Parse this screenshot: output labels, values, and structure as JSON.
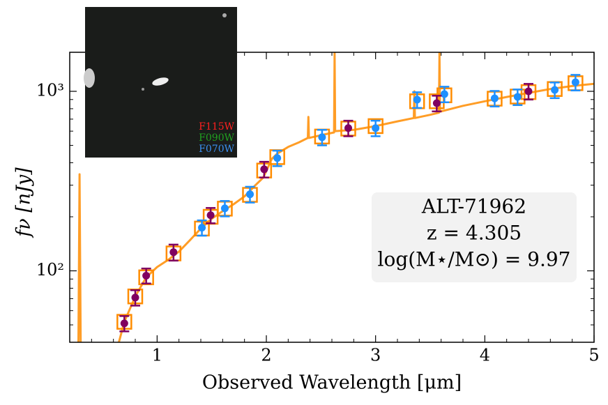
{
  "chart_data": {
    "type": "sed",
    "xlabel": "Observed Wavelength [μm]",
    "ylabel": "fν [nJy]",
    "xlim": [
      0.2,
      5
    ],
    "xticks": [
      1,
      2,
      3,
      4,
      5
    ],
    "xminorticks": [
      0.2,
      0.4,
      0.6,
      0.8,
      1.2,
      1.4,
      1.6,
      1.8,
      2.2,
      2.4,
      2.6,
      2.8,
      3.2,
      3.4,
      3.6,
      3.8,
      4.2,
      4.4,
      4.6,
      4.8
    ],
    "ylim": [
      40,
      1650
    ],
    "log_y": true,
    "yticks": [
      {
        "value": 100,
        "label": "10²"
      },
      {
        "value": 1000,
        "label": "10³"
      }
    ],
    "yminorticks": [
      40,
      50,
      60,
      70,
      80,
      90,
      200,
      300,
      400,
      500,
      600,
      700,
      800,
      900
    ],
    "annotation": [
      "ALT-71962",
      "z = 4.305",
      "log(M⋆/M⊙) = 9.97"
    ],
    "inset_labels": [
      {
        "text": "F115W",
        "color": "#ff2020"
      },
      {
        "text": "F090W",
        "color": "#20a020"
      },
      {
        "text": "F070W",
        "color": "#3a8ff0"
      }
    ],
    "spectrum": {
      "color": "#ff8c00",
      "x": [
        0.28,
        0.29,
        0.3,
        null,
        0.65,
        0.7,
        0.8,
        0.9,
        1.0,
        1.1,
        1.2,
        1.3,
        1.4,
        1.5,
        1.6,
        1.7,
        1.8,
        1.9,
        1.97,
        2.0,
        2.05,
        2.1,
        2.2,
        2.3,
        2.38,
        2.385,
        2.39,
        2.5,
        2.62,
        2.625,
        2.63,
        2.8,
        3.0,
        3.2,
        3.35,
        3.355,
        3.36,
        3.5,
        3.58,
        3.585,
        3.59,
        3.8,
        4.0,
        4.2,
        4.4,
        4.6,
        4.8,
        5.0
      ],
      "values": [
        40,
        345,
        40,
        null,
        40,
        52,
        72,
        92,
        105,
        115,
        128,
        148,
        172,
        195,
        215,
        235,
        260,
        300,
        330,
        360,
        420,
        450,
        490,
        520,
        550,
        720,
        550,
        570,
        590,
        1650,
        600,
        610,
        640,
        680,
        710,
        1000,
        710,
        740,
        760,
        1650,
        770,
        830,
        880,
        930,
        980,
        1030,
        1070,
        1100
      ]
    },
    "model_photometry": {
      "color": "#ff8c00",
      "x": [
        0.7,
        0.8,
        0.9,
        1.15,
        1.41,
        1.49,
        1.62,
        1.85,
        1.98,
        2.1,
        2.51,
        2.75,
        3.0,
        3.38,
        3.56,
        3.63,
        4.09,
        4.3,
        4.4,
        4.64,
        4.83
      ],
      "values": [
        52,
        72,
        92,
        125,
        172,
        200,
        222,
        265,
        362,
        430,
        560,
        620,
        640,
        880,
        880,
        950,
        910,
        935,
        990,
        1030,
        1110
      ]
    },
    "series": [
      {
        "color": "#1e90ff",
        "x": [
          1.41,
          1.62,
          1.85,
          2.1,
          2.51,
          3.0,
          3.38,
          3.63,
          4.09,
          4.3,
          4.64,
          4.83
        ],
        "values": [
          174,
          223,
          267,
          425,
          555,
          624,
          898,
          965,
          914,
          931,
          1018,
          1123
        ],
        "errors": [
          17,
          22,
          27,
          42,
          55,
          62,
          90,
          96,
          91,
          93,
          102,
          112
        ]
      },
      {
        "color": "#800060",
        "x": [
          0.7,
          0.8,
          0.9,
          1.15,
          1.49,
          1.98,
          2.75,
          3.56,
          4.4
        ],
        "values": [
          51,
          71,
          94,
          127,
          204,
          368,
          624,
          859,
          1000
        ],
        "errors": [
          5,
          7,
          9,
          13,
          20,
          37,
          62,
          86,
          100
        ]
      }
    ]
  }
}
